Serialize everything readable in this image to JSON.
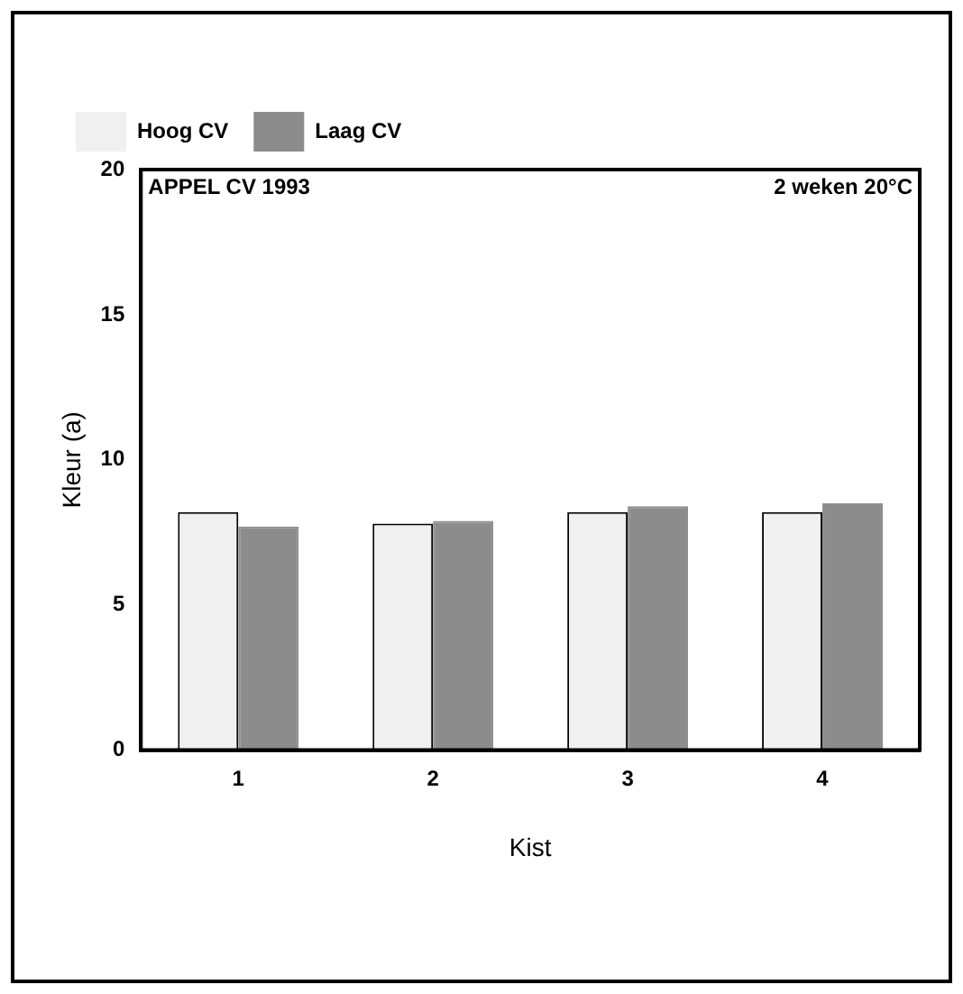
{
  "chart_data": {
    "type": "bar",
    "xlabel": "Kist",
    "ylabel": "Kleur (a)",
    "categories": [
      "1",
      "2",
      "3",
      "4"
    ],
    "series": [
      {
        "name": "Hoog CV",
        "color": "#f0f0f0",
        "values": [
          8.2,
          7.8,
          8.2,
          8.2
        ]
      },
      {
        "name": "Laag CV",
        "color": "#8c8c8c",
        "values": [
          7.7,
          7.9,
          8.4,
          8.5
        ]
      }
    ],
    "ylim": [
      0,
      20
    ],
    "yticks": [
      0,
      5,
      10,
      15,
      20
    ],
    "grid": false,
    "legend": "top left",
    "annotations": [
      "APPEL CV 1993",
      "2 weken 20°C"
    ]
  }
}
